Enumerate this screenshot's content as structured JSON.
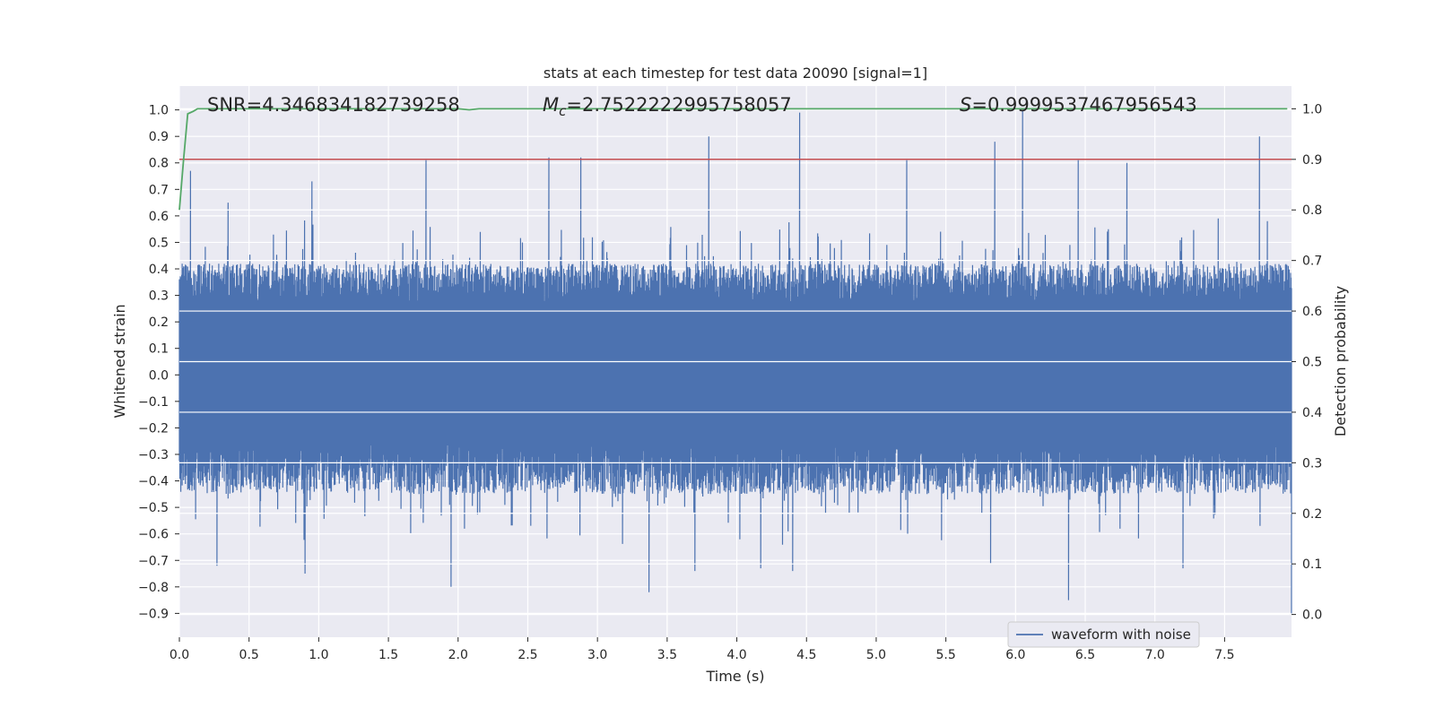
{
  "chart_data": {
    "type": "line",
    "title": "stats at each timestep for test data 20090 [signal=1]",
    "xlabel": "Time (s)",
    "ylabel_left": "Whitened strain",
    "ylabel_right": "Detection probability",
    "xlim": [
      0.0,
      7.98
    ],
    "ylim_left": [
      -0.99,
      1.09
    ],
    "ylim_right": [
      -0.045,
      1.045
    ],
    "x_ticks": [
      "0.0",
      "0.5",
      "1.0",
      "1.5",
      "2.0",
      "2.5",
      "3.0",
      "3.5",
      "4.0",
      "4.5",
      "5.0",
      "5.5",
      "6.0",
      "6.5",
      "7.0",
      "7.5"
    ],
    "y_ticks_left": [
      "1.0",
      "0.9",
      "0.8",
      "0.7",
      "0.6",
      "0.5",
      "0.4",
      "0.3",
      "0.2",
      "0.1",
      "0.0",
      "−0.1",
      "−0.2",
      "−0.3",
      "−0.4",
      "−0.5",
      "−0.6",
      "−0.7",
      "−0.8",
      "−0.9"
    ],
    "y_ticks_right": [
      "1.0",
      "0.9",
      "0.8",
      "0.7",
      "0.6",
      "0.5",
      "0.4",
      "0.3",
      "0.2",
      "0.1",
      "0.0"
    ],
    "grid": true,
    "legend_position": "lower-right",
    "annotations": {
      "snr": "SNR=4.346834182739258",
      "mc_symbol": "M",
      "mc_sub": "c",
      "mc_value": "=2.7522222995758057",
      "s_symbol": "S",
      "s_value": "=0.9999537467956543"
    },
    "series": [
      {
        "name": "waveform with noise",
        "axis": "left",
        "color": "#4c72b0",
        "envelope": {
          "typical_upper": 0.42,
          "typical_lower": -0.45,
          "core_upper": 0.22,
          "core_lower": -0.2,
          "peaks": [
            [
              0.08,
              0.77
            ],
            [
              0.35,
              0.65
            ],
            [
              0.95,
              0.73
            ],
            [
              1.77,
              0.81
            ],
            [
              2.65,
              0.82
            ],
            [
              2.88,
              0.82
            ],
            [
              3.8,
              0.9
            ],
            [
              4.45,
              0.99
            ],
            [
              5.22,
              0.81
            ],
            [
              5.85,
              0.88
            ],
            [
              6.05,
              1.0
            ],
            [
              6.45,
              0.81
            ],
            [
              6.8,
              0.8
            ],
            [
              7.75,
              0.9
            ]
          ],
          "troughs": [
            [
              0.27,
              -0.72
            ],
            [
              0.9,
              -0.75
            ],
            [
              1.95,
              -0.8
            ],
            [
              3.37,
              -0.82
            ],
            [
              3.7,
              -0.74
            ],
            [
              4.17,
              -0.73
            ],
            [
              4.4,
              -0.74
            ],
            [
              5.82,
              -0.71
            ],
            [
              6.38,
              -0.85
            ],
            [
              7.2,
              -0.73
            ],
            [
              7.98,
              -0.9
            ]
          ]
        }
      },
      {
        "name": "",
        "axis": "right",
        "color": "#55a868",
        "x": [
          0.0,
          0.03,
          0.06,
          0.1,
          0.13,
          0.2,
          1.0,
          2.0,
          2.08,
          2.15,
          3.0,
          4.0,
          5.0,
          6.0,
          7.0,
          7.95
        ],
        "y": [
          0.8,
          0.9,
          0.99,
          0.995,
          1.0,
          1.0,
          1.0,
          1.0,
          0.998,
          1.0,
          1.0,
          1.0,
          1.0,
          1.0,
          1.0,
          1.0
        ]
      },
      {
        "name": "",
        "axis": "right",
        "color": "#c44e52",
        "x": [
          0.0,
          7.98
        ],
        "y": [
          0.9,
          0.9
        ]
      }
    ]
  }
}
